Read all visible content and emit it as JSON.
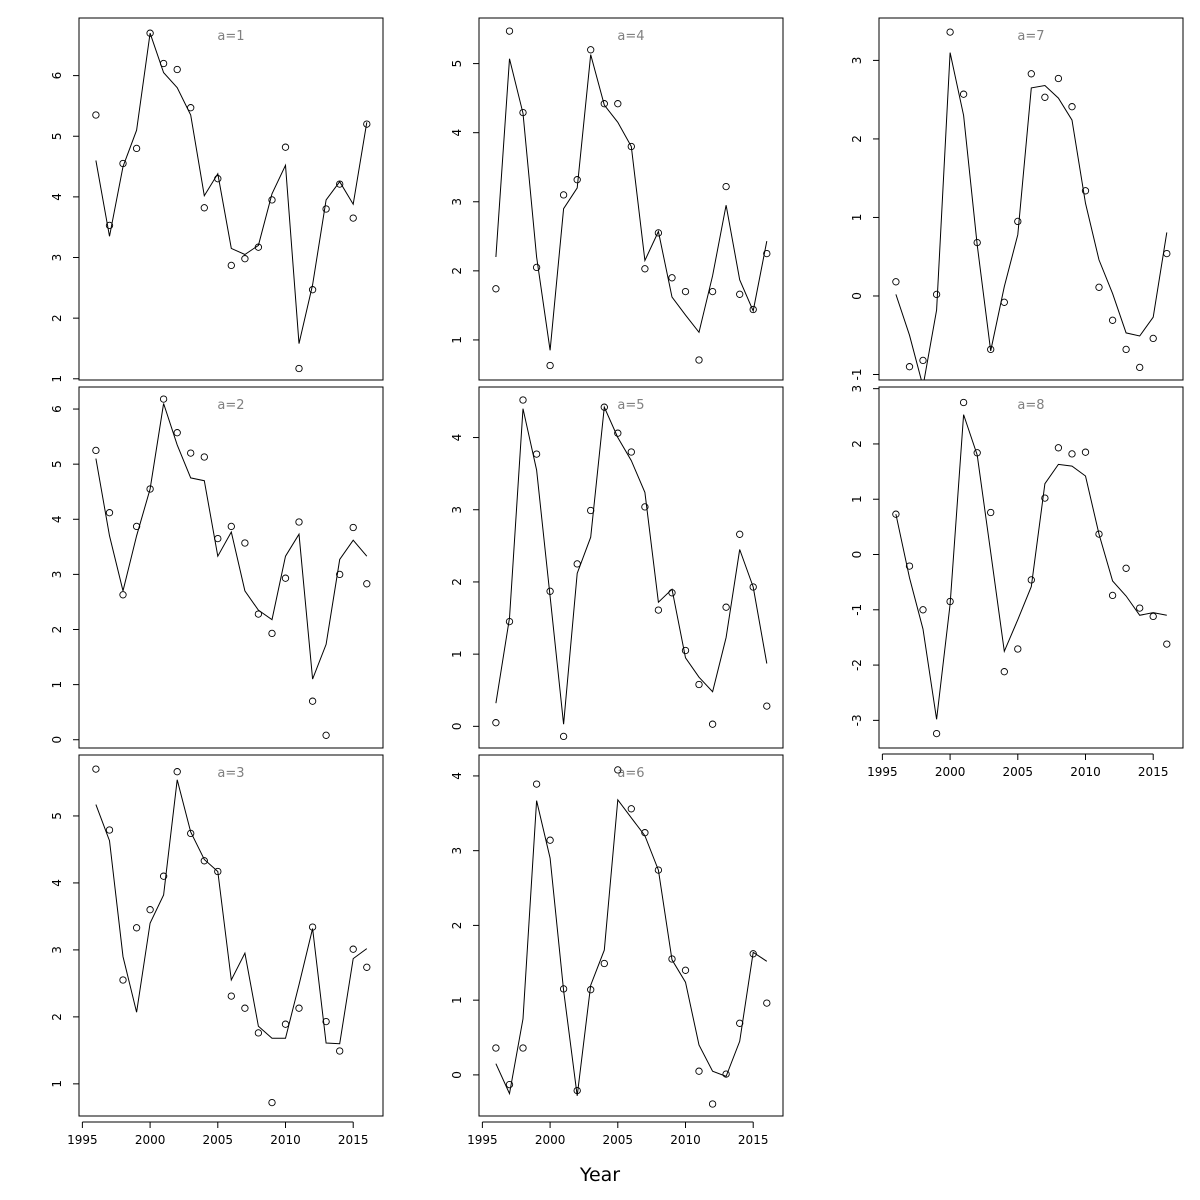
{
  "figure": {
    "xlabel": "Year"
  },
  "chart_data": [
    {
      "type": "scatter",
      "title": "a=1",
      "x": [
        1996,
        1997,
        1998,
        1999,
        2000,
        2001,
        2002,
        2003,
        2004,
        2005,
        2006,
        2007,
        2008,
        2009,
        2010,
        2011,
        2012,
        2013,
        2014,
        2015,
        2016
      ],
      "ylim": [
        0.98,
        6.95
      ],
      "yticks": [
        1,
        2,
        3,
        4,
        5,
        6
      ],
      "series": [
        {
          "kind": "points",
          "values": [
            5.35,
            3.53,
            4.55,
            4.8,
            6.7,
            6.2,
            6.1,
            5.47,
            3.82,
            4.3,
            2.87,
            2.98,
            3.17,
            3.95,
            4.82,
            1.17,
            2.47,
            3.8,
            4.21,
            3.65,
            5.2
          ]
        },
        {
          "kind": "line",
          "values": [
            4.6,
            3.35,
            4.5,
            5.1,
            6.7,
            6.05,
            5.8,
            5.35,
            4.02,
            4.38,
            3.15,
            3.05,
            3.2,
            4.05,
            4.52,
            1.58,
            2.55,
            3.95,
            4.25,
            3.88,
            5.23
          ]
        }
      ]
    },
    {
      "type": "scatter",
      "title": "a=2",
      "x": [
        1996,
        1997,
        1998,
        1999,
        2000,
        2001,
        2002,
        2003,
        2004,
        2005,
        2006,
        2007,
        2008,
        2009,
        2010,
        2011,
        2012,
        2013,
        2014,
        2015,
        2016
      ],
      "ylim": [
        -0.15,
        6.4
      ],
      "yticks": [
        0,
        1,
        2,
        3,
        4,
        5,
        6
      ],
      "series": [
        {
          "kind": "points",
          "values": [
            5.25,
            4.12,
            2.63,
            3.87,
            4.55,
            6.18,
            5.57,
            5.2,
            5.13,
            3.65,
            3.87,
            3.57,
            2.28,
            1.93,
            2.93,
            3.95,
            0.7,
            0.08,
            3.0,
            3.85,
            2.83
          ]
        },
        {
          "kind": "line",
          "values": [
            5.1,
            3.7,
            2.7,
            3.7,
            4.55,
            6.1,
            5.35,
            4.75,
            4.7,
            3.33,
            3.77,
            2.7,
            2.35,
            2.18,
            3.33,
            3.73,
            1.1,
            1.73,
            3.27,
            3.62,
            3.33
          ]
        }
      ]
    },
    {
      "type": "scatter",
      "title": "a=3",
      "x": [
        1996,
        1997,
        1998,
        1999,
        2000,
        2001,
        2002,
        2003,
        2004,
        2005,
        2006,
        2007,
        2008,
        2009,
        2010,
        2011,
        2012,
        2013,
        2014,
        2015,
        2016
      ],
      "ylim": [
        0.52,
        5.91
      ],
      "yticks": [
        1,
        2,
        3,
        4,
        5
      ],
      "series": [
        {
          "kind": "points",
          "values": [
            5.7,
            4.79,
            2.55,
            3.33,
            3.6,
            4.1,
            5.66,
            4.74,
            4.33,
            4.17,
            2.31,
            2.13,
            1.76,
            0.72,
            1.89,
            2.13,
            3.34,
            1.93,
            1.49,
            3.01,
            2.74
          ]
        },
        {
          "kind": "line",
          "values": [
            5.17,
            4.63,
            2.9,
            2.07,
            3.4,
            3.82,
            5.54,
            4.76,
            4.35,
            4.17,
            2.55,
            2.95,
            1.86,
            1.68,
            1.68,
            2.48,
            3.32,
            1.61,
            1.6,
            2.87,
            3.02
          ]
        }
      ]
    },
    {
      "type": "scatter",
      "title": "a=4",
      "x": [
        1996,
        1997,
        1998,
        1999,
        2000,
        2001,
        2002,
        2003,
        2004,
        2005,
        2006,
        2007,
        2008,
        2009,
        2010,
        2011,
        2012,
        2013,
        2014,
        2015,
        2016
      ],
      "ylim": [
        0.42,
        5.66
      ],
      "yticks": [
        1,
        2,
        3,
        4,
        5
      ],
      "series": [
        {
          "kind": "points",
          "values": [
            1.74,
            5.47,
            4.29,
            2.05,
            0.63,
            3.1,
            3.32,
            5.2,
            4.42,
            4.42,
            3.8,
            2.03,
            2.55,
            1.9,
            1.7,
            0.71,
            1.7,
            3.22,
            1.66,
            1.44,
            2.25
          ]
        },
        {
          "kind": "line",
          "values": [
            2.2,
            5.07,
            4.28,
            2.2,
            0.85,
            2.9,
            3.2,
            5.13,
            4.4,
            4.15,
            3.8,
            2.15,
            2.57,
            1.62,
            1.36,
            1.11,
            1.93,
            2.95,
            1.87,
            1.42,
            2.43
          ]
        }
      ]
    },
    {
      "type": "scatter",
      "title": "a=5",
      "x": [
        1996,
        1997,
        1998,
        1999,
        2000,
        2001,
        2002,
        2003,
        2004,
        2005,
        2006,
        2007,
        2008,
        2009,
        2010,
        2011,
        2012,
        2013,
        2014,
        2015,
        2016
      ],
      "ylim": [
        -0.3,
        4.7
      ],
      "yticks": [
        0,
        1,
        2,
        3,
        4
      ],
      "series": [
        {
          "kind": "points",
          "values": [
            0.05,
            1.45,
            4.52,
            3.77,
            1.87,
            -0.14,
            2.25,
            2.99,
            4.42,
            4.06,
            3.8,
            3.04,
            1.61,
            1.85,
            1.05,
            0.58,
            0.03,
            1.65,
            2.66,
            1.93,
            0.28
          ]
        },
        {
          "kind": "line",
          "values": [
            0.32,
            1.5,
            4.4,
            3.55,
            1.8,
            0.03,
            2.12,
            2.62,
            4.42,
            4.0,
            3.68,
            3.24,
            1.72,
            1.9,
            0.95,
            0.68,
            0.48,
            1.23,
            2.45,
            1.93,
            0.87
          ]
        }
      ]
    },
    {
      "type": "scatter",
      "title": "a=6",
      "x": [
        1996,
        1997,
        1998,
        1999,
        2000,
        2001,
        2002,
        2003,
        2004,
        2005,
        2006,
        2007,
        2008,
        2009,
        2010,
        2011,
        2012,
        2013,
        2014,
        2015,
        2016
      ],
      "ylim": [
        -0.55,
        4.28
      ],
      "yticks": [
        0,
        1,
        2,
        3,
        4
      ],
      "series": [
        {
          "kind": "points",
          "values": [
            0.36,
            -0.13,
            0.36,
            3.89,
            3.14,
            1.15,
            -0.21,
            1.14,
            1.49,
            4.08,
            3.56,
            3.24,
            2.74,
            1.55,
            1.4,
            0.05,
            -0.39,
            0.01,
            0.69,
            1.62,
            0.96
          ]
        },
        {
          "kind": "line",
          "values": [
            0.15,
            -0.25,
            0.75,
            3.67,
            2.9,
            1.13,
            -0.28,
            1.2,
            1.67,
            3.68,
            3.44,
            3.2,
            2.74,
            1.54,
            1.24,
            0.4,
            0.05,
            -0.02,
            0.45,
            1.64,
            1.52
          ]
        }
      ]
    },
    {
      "type": "scatter",
      "title": "a=7",
      "x": [
        1996,
        1997,
        1998,
        1999,
        2000,
        2001,
        2002,
        2003,
        2004,
        2005,
        2006,
        2007,
        2008,
        2009,
        2010,
        2011,
        2012,
        2013,
        2014,
        2015,
        2016
      ],
      "ylim": [
        -1.07,
        3.54
      ],
      "yticks": [
        -1,
        0,
        1,
        2,
        3
      ],
      "series": [
        {
          "kind": "points",
          "values": [
            0.18,
            -0.9,
            -0.82,
            0.02,
            3.36,
            2.57,
            0.68,
            -0.68,
            -0.08,
            0.95,
            2.83,
            2.53,
            2.77,
            2.41,
            1.34,
            0.11,
            -0.31,
            -0.68,
            -0.91,
            -0.54,
            0.54
          ]
        },
        {
          "kind": "line",
          "values": [
            0.02,
            -0.5,
            -1.15,
            -0.18,
            3.1,
            2.3,
            0.65,
            -0.7,
            0.12,
            0.78,
            2.65,
            2.68,
            2.52,
            2.24,
            1.18,
            0.46,
            0.03,
            -0.47,
            -0.51,
            -0.27,
            0.81
          ]
        }
      ]
    },
    {
      "type": "scatter",
      "title": "a=8",
      "x": [
        1996,
        1997,
        1998,
        1999,
        2000,
        2001,
        2002,
        2003,
        2004,
        2005,
        2006,
        2007,
        2008,
        2009,
        2010,
        2011,
        2012,
        2013,
        2014,
        2015,
        2016
      ],
      "ylim": [
        -3.5,
        3.03
      ],
      "yticks": [
        -3,
        -2,
        -1,
        0,
        1,
        2,
        3
      ],
      "series": [
        {
          "kind": "points",
          "values": [
            0.73,
            -0.21,
            -1.0,
            -3.24,
            -0.85,
            2.75,
            1.84,
            0.76,
            -2.12,
            -1.71,
            -0.46,
            1.02,
            1.93,
            1.82,
            1.85,
            0.37,
            -0.74,
            -0.25,
            -0.97,
            -1.12,
            -1.62
          ]
        },
        {
          "kind": "line",
          "values": [
            0.73,
            -0.42,
            -1.35,
            -2.98,
            -0.9,
            2.53,
            1.8,
            0.04,
            -1.75,
            -1.18,
            -0.58,
            1.28,
            1.63,
            1.6,
            1.42,
            0.37,
            -0.48,
            -0.75,
            -1.1,
            -1.05,
            -1.1
          ]
        }
      ]
    }
  ]
}
